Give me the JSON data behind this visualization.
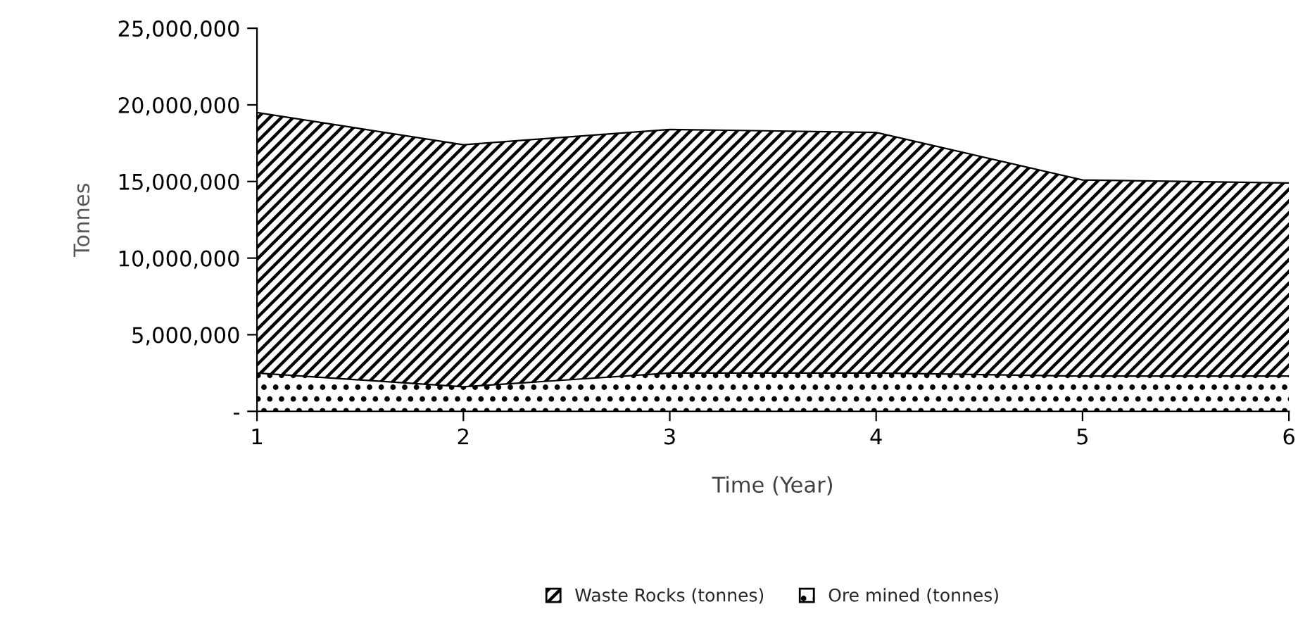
{
  "chart_data": {
    "type": "area",
    "stacked": true,
    "xlabel": "Time (Year)",
    "ylabel": "Tonnes",
    "x": [
      1,
      2,
      3,
      4,
      5,
      6
    ],
    "series": [
      {
        "name": "Ore mined (tonnes)",
        "color": "#000000",
        "values": [
          2500000,
          1600000,
          2500000,
          2500000,
          2300000,
          2300000
        ]
      },
      {
        "name": "Waste Rocks (tonnes)",
        "color": "#000000",
        "values": [
          17000000,
          15800000,
          15900000,
          15700000,
          12800000,
          12600000
        ]
      }
    ],
    "xlim": [
      1,
      6
    ],
    "xticks": [
      1,
      2,
      3,
      4,
      5,
      6
    ],
    "ylim": [
      0,
      25000000
    ],
    "yticks": [
      {
        "value": 0,
        "label": "-"
      },
      {
        "value": 5000000,
        "label": "5,000,000"
      },
      {
        "value": 10000000,
        "label": "10,000,000"
      },
      {
        "value": 15000000,
        "label": "15,000,000"
      },
      {
        "value": 20000000,
        "label": "20,000,000"
      },
      {
        "value": 25000000,
        "label": "25,000,000"
      }
    ],
    "grid": false,
    "legend": "bottom"
  }
}
